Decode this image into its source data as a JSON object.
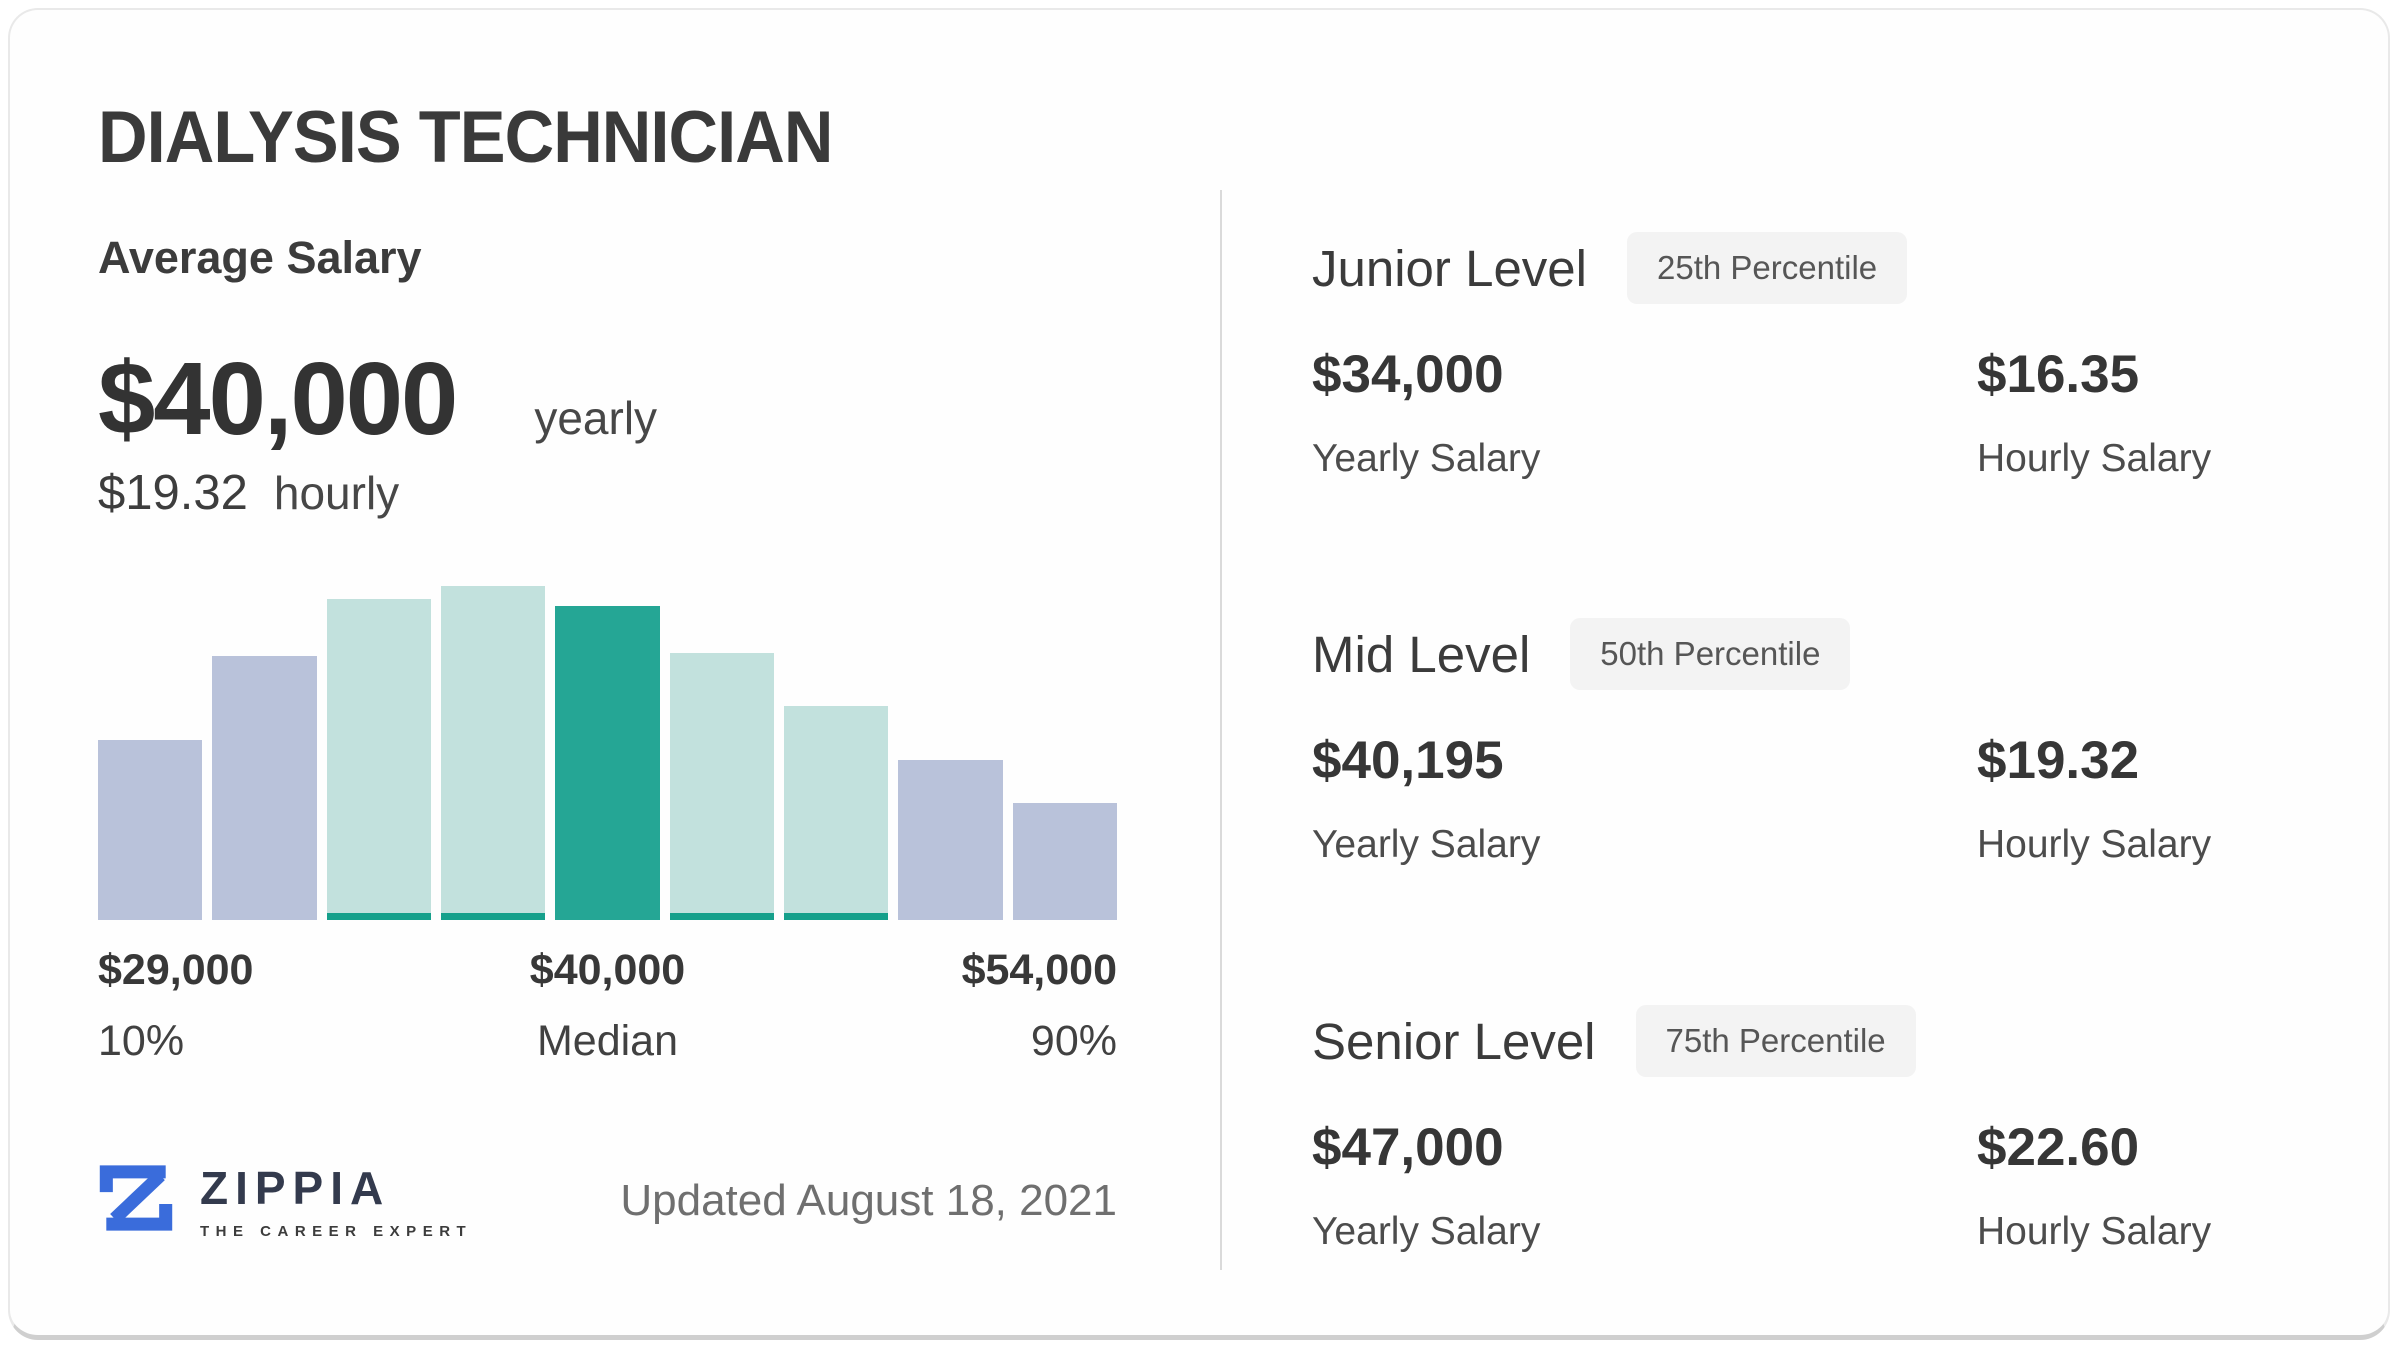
{
  "header": {
    "title": "DIALYSIS TECHNICIAN"
  },
  "average_salary": {
    "section_label": "Average Salary",
    "yearly_amount": "$40,000",
    "yearly_unit": "yearly",
    "hourly_amount": "$19.32",
    "hourly_unit": "hourly"
  },
  "chart_data": {
    "type": "bar",
    "title": "Dialysis Technician salary distribution histogram",
    "x_range_note": "10th percentile $29,000 to 90th percentile $54,000, median $40,000",
    "categories": [
      "b1",
      "b2",
      "b3",
      "b4",
      "b5",
      "b6",
      "b7",
      "b8",
      "b9"
    ],
    "values": [
      54,
      79,
      96,
      100,
      94,
      80,
      64,
      48,
      35
    ],
    "bar_color_keys": [
      "lavender",
      "lavender",
      "teal_light",
      "teal_light",
      "teal_dark",
      "teal_light",
      "teal_light",
      "lavender",
      "lavender"
    ],
    "ylim": [
      0,
      100
    ],
    "grid": false,
    "legend": false,
    "markers": {
      "left": {
        "amount": "$29,000",
        "label": "10%"
      },
      "center": {
        "amount": "$40,000",
        "label": "Median"
      },
      "right": {
        "amount": "$54,000",
        "label": "90%"
      }
    }
  },
  "levels": [
    {
      "name": "Junior Level",
      "badge": "25th Percentile",
      "yearly_amount": "$34,000",
      "yearly_label": "Yearly Salary",
      "hourly_amount": "$16.35",
      "hourly_label": "Hourly Salary"
    },
    {
      "name": "Mid Level",
      "badge": "50th Percentile",
      "yearly_amount": "$40,195",
      "yearly_label": "Yearly Salary",
      "hourly_amount": "$19.32",
      "hourly_label": "Hourly Salary"
    },
    {
      "name": "Senior Level",
      "badge": "75th Percentile",
      "yearly_amount": "$47,000",
      "yearly_label": "Yearly Salary",
      "hourly_amount": "$22.60",
      "hourly_label": "Hourly Salary"
    }
  ],
  "footer": {
    "brand": "ZIPPIA",
    "tagline": "THE CAREER EXPERT",
    "updated": "Updated August 18, 2021"
  },
  "colors": {
    "lavender": "#b9c2da",
    "teal_light": "#c2e1dd",
    "teal_dark": "#25a695",
    "teal_strip": "#15a08b",
    "accent_blue": "#3a6cdb",
    "divider": "#dadada",
    "badge_bg": "#f3f3f3",
    "text_dark": "#3a3a3a"
  }
}
